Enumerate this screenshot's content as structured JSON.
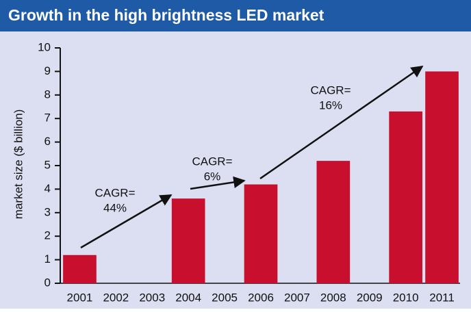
{
  "chart_data": {
    "type": "bar",
    "title": "Growth in the high brightness LED market",
    "y_axis_label": "market size ($ billion)",
    "categories": [
      "2001",
      "2002",
      "2003",
      "2004",
      "2005",
      "2006",
      "2007",
      "2008",
      "2009",
      "2010",
      "2011"
    ],
    "values": [
      1.2,
      null,
      null,
      3.6,
      null,
      4.2,
      null,
      5.2,
      null,
      7.3,
      9.0
    ],
    "color": "#c8102e",
    "ylim": [
      0,
      10
    ],
    "yticks": [
      0,
      1,
      2,
      3,
      4,
      5,
      6,
      7,
      8,
      9,
      10
    ],
    "grid": false,
    "annotations": [
      {
        "text": [
          "CAGR=",
          "44%"
        ]
      },
      {
        "text": [
          "CAGR=",
          "6%"
        ]
      },
      {
        "text": [
          "CAGR=",
          "16%"
        ]
      }
    ]
  }
}
